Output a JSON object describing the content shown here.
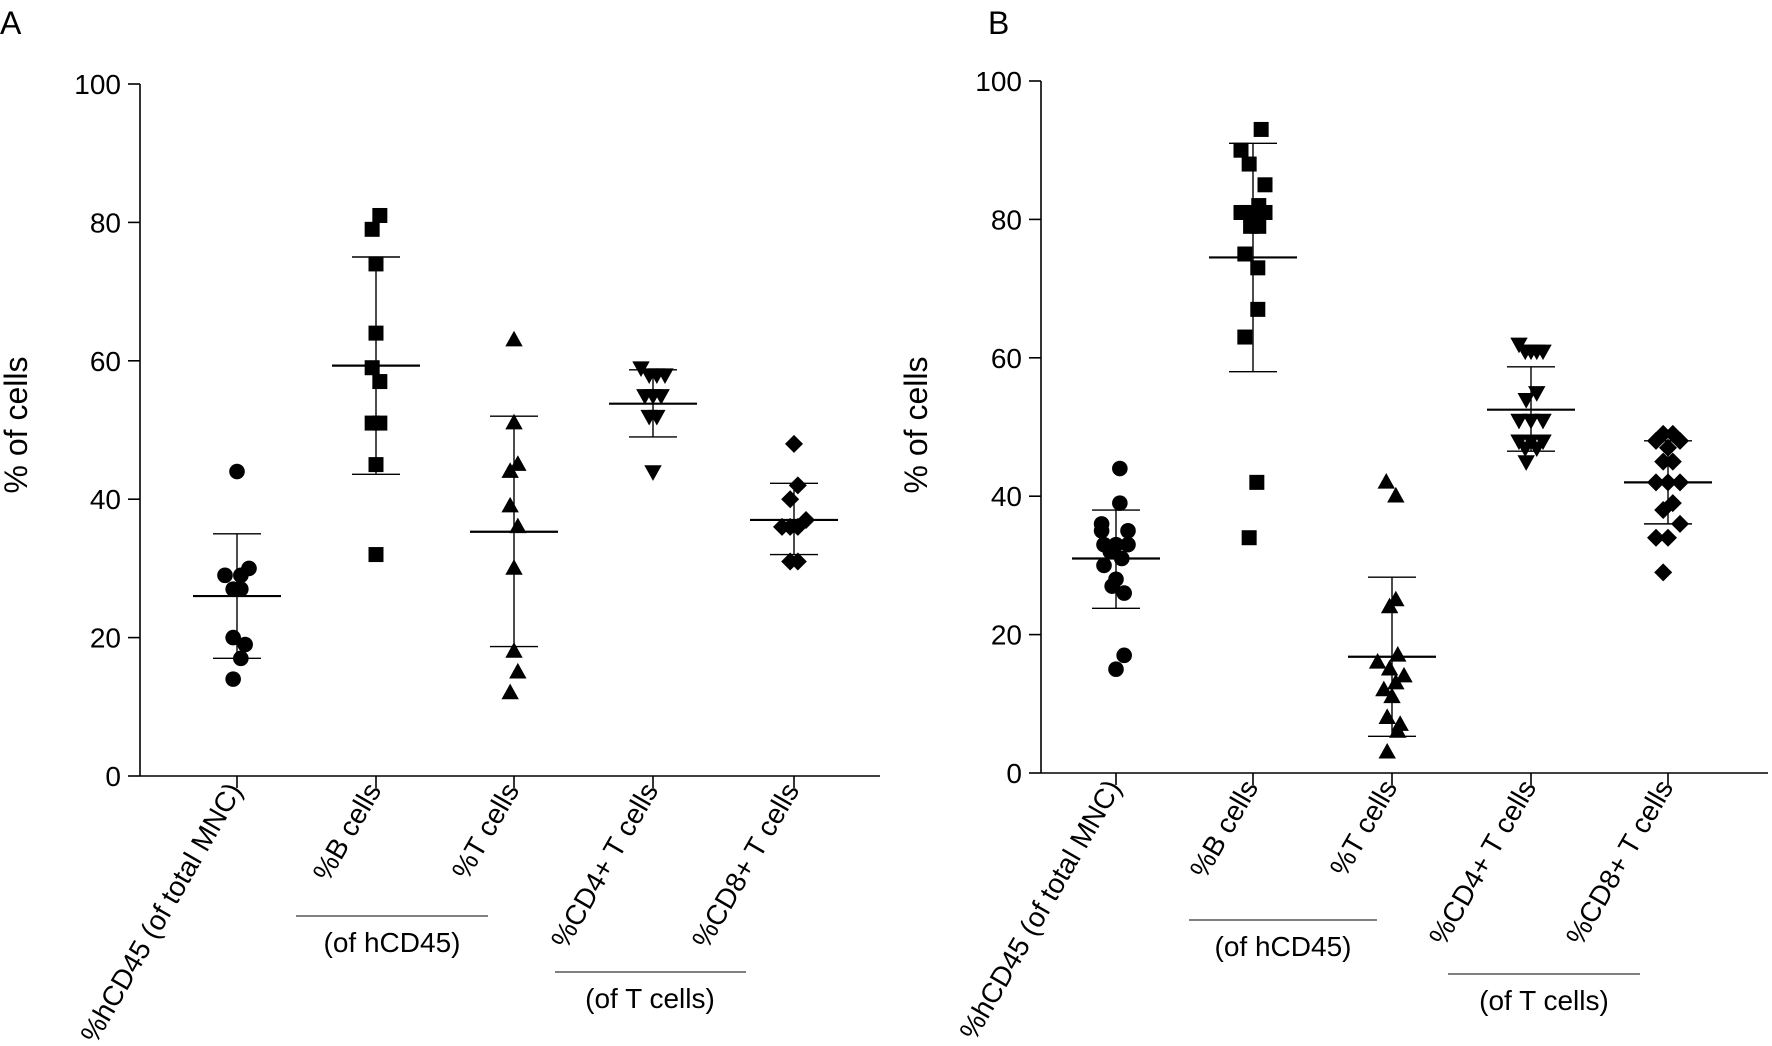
{
  "chart_data": [
    {
      "panel_label": "A",
      "type": "scatter",
      "ylabel": "% of cells",
      "ylim": [
        0,
        100
      ],
      "yticks": [
        0,
        20,
        40,
        60,
        80,
        100
      ],
      "categories": [
        "%hCD45 (of total MNC)",
        "%B cells",
        "%T cells",
        "%CD4+ T cells",
        "%CD8+ T cells"
      ],
      "group_labels": [
        {
          "text": "(of hCD45)",
          "spans": [
            1,
            2
          ]
        },
        {
          "text": "(of  T cells)",
          "spans": [
            3,
            4
          ]
        }
      ],
      "series": [
        {
          "name": "%hCD45 (of total MNC)",
          "marker": "circle",
          "mean": 26,
          "sd_low": 17,
          "sd_high": 35,
          "points": [
            [
              0,
              44
            ],
            [
              -0.25,
              29
            ],
            [
              0.08,
              29
            ],
            [
              0.25,
              30
            ],
            [
              -0.08,
              27
            ],
            [
              0.08,
              27
            ],
            [
              -0.08,
              20
            ],
            [
              0.17,
              19
            ],
            [
              0.08,
              17
            ],
            [
              -0.08,
              14
            ]
          ]
        },
        {
          "name": "%B cells",
          "marker": "square",
          "mean": 59.3,
          "sd_low": 43.6,
          "sd_high": 75,
          "points": [
            [
              0.08,
              81
            ],
            [
              -0.08,
              79
            ],
            [
              0,
              74
            ],
            [
              0,
              64
            ],
            [
              -0.08,
              59
            ],
            [
              0.08,
              57
            ],
            [
              -0.08,
              51
            ],
            [
              0.08,
              51
            ],
            [
              0,
              45
            ],
            [
              0,
              32
            ]
          ]
        },
        {
          "name": "%T cells",
          "marker": "triangle",
          "mean": 35.3,
          "sd_low": 18.7,
          "sd_high": 52,
          "points": [
            [
              0,
              63
            ],
            [
              0,
              51
            ],
            [
              -0.08,
              44
            ],
            [
              0.08,
              45
            ],
            [
              -0.08,
              39
            ],
            [
              0.08,
              36
            ],
            [
              0,
              30
            ],
            [
              0,
              18
            ],
            [
              0.08,
              15
            ],
            [
              -0.08,
              12
            ]
          ]
        },
        {
          "name": "%CD4+ T cells",
          "marker": "triangle-down",
          "mean": 53.8,
          "sd_low": 49,
          "sd_high": 58.7,
          "points": [
            [
              -0.25,
              59
            ],
            [
              -0.08,
              58
            ],
            [
              0.08,
              58
            ],
            [
              0.25,
              58
            ],
            [
              -0.17,
              55
            ],
            [
              0,
              55
            ],
            [
              0.17,
              55
            ],
            [
              -0.08,
              52
            ],
            [
              0.08,
              52
            ],
            [
              0,
              44
            ]
          ]
        },
        {
          "name": "%CD8+ T cells",
          "marker": "diamond",
          "mean": 37,
          "sd_low": 32,
          "sd_high": 42.3,
          "points": [
            [
              0,
              48
            ],
            [
              0.08,
              42
            ],
            [
              -0.08,
              40
            ],
            [
              0.25,
              37
            ],
            [
              -0.25,
              36
            ],
            [
              -0.08,
              36
            ],
            [
              0.08,
              36
            ],
            [
              -0.08,
              31
            ],
            [
              0.08,
              31
            ]
          ]
        }
      ]
    },
    {
      "panel_label": "B",
      "type": "scatter",
      "ylabel": "% of cells",
      "ylim": [
        0,
        100
      ],
      "yticks": [
        0,
        20,
        40,
        60,
        80,
        100
      ],
      "categories": [
        "%hCD45 (of total MNC)",
        "%B cells",
        "%T cells",
        "%CD4+ T cells",
        "%CD8+ T cells"
      ],
      "group_labels": [
        {
          "text": "(of hCD45)",
          "spans": [
            1,
            2
          ]
        },
        {
          "text": "(of  T cells)",
          "spans": [
            3,
            4
          ]
        }
      ],
      "series": [
        {
          "name": "%hCD45 (of total MNC)",
          "marker": "circle",
          "mean": 31,
          "sd_low": 23.8,
          "sd_high": 38,
          "points": [
            [
              0.08,
              44
            ],
            [
              0.08,
              39
            ],
            [
              -0.3,
              36
            ],
            [
              -0.3,
              35
            ],
            [
              0.25,
              35
            ],
            [
              -0.25,
              33
            ],
            [
              0.25,
              33
            ],
            [
              0,
              33
            ],
            [
              -0.12,
              32
            ],
            [
              0.12,
              31
            ],
            [
              -0.25,
              30
            ],
            [
              0,
              28
            ],
            [
              -0.08,
              27
            ],
            [
              0.17,
              26
            ],
            [
              0.17,
              17
            ],
            [
              0,
              15
            ]
          ]
        },
        {
          "name": "%B cells",
          "marker": "square",
          "mean": 74.5,
          "sd_low": 58,
          "sd_high": 91,
          "points": [
            [
              0.17,
              93
            ],
            [
              -0.25,
              90
            ],
            [
              -0.08,
              88
            ],
            [
              0.25,
              85
            ],
            [
              0.12,
              82
            ],
            [
              -0.25,
              81
            ],
            [
              -0.12,
              81
            ],
            [
              0,
              81
            ],
            [
              0.25,
              81
            ],
            [
              -0.05,
              79
            ],
            [
              0.12,
              79
            ],
            [
              -0.17,
              75
            ],
            [
              0.1,
              73
            ],
            [
              0.1,
              67
            ],
            [
              -0.17,
              63
            ],
            [
              0.08,
              42
            ],
            [
              -0.08,
              34
            ]
          ]
        },
        {
          "name": "%T cells",
          "marker": "triangle",
          "mean": 16.8,
          "sd_low": 5.3,
          "sd_high": 28.3,
          "points": [
            [
              -0.12,
              42
            ],
            [
              0.08,
              40
            ],
            [
              0.08,
              25
            ],
            [
              -0.05,
              24
            ],
            [
              0.12,
              17
            ],
            [
              -0.3,
              16
            ],
            [
              -0.05,
              15
            ],
            [
              0.25,
              14
            ],
            [
              0.08,
              13
            ],
            [
              -0.17,
              12
            ],
            [
              0,
              11
            ],
            [
              -0.1,
              8
            ],
            [
              0.12,
              6
            ],
            [
              0.17,
              7
            ],
            [
              -0.1,
              3
            ]
          ]
        },
        {
          "name": "%CD4+ T cells",
          "marker": "triangle-down",
          "mean": 52.5,
          "sd_low": 46.5,
          "sd_high": 58.7,
          "points": [
            [
              -0.25,
              62
            ],
            [
              -0.12,
              61
            ],
            [
              0,
              61
            ],
            [
              0.12,
              61
            ],
            [
              0.25,
              61
            ],
            [
              0.12,
              55
            ],
            [
              -0.1,
              54
            ],
            [
              -0.25,
              51
            ],
            [
              0,
              51
            ],
            [
              0.25,
              51
            ],
            [
              -0.25,
              48
            ],
            [
              0,
              48
            ],
            [
              -0.12,
              47
            ],
            [
              0.12,
              47
            ],
            [
              0.25,
              48
            ],
            [
              -0.1,
              45
            ]
          ]
        },
        {
          "name": "%CD8+ T cells",
          "marker": "diamond",
          "mean": 42,
          "sd_low": 36,
          "sd_high": 48,
          "points": [
            [
              -0.1,
              49
            ],
            [
              0.1,
              49
            ],
            [
              0.25,
              48
            ],
            [
              -0.25,
              48
            ],
            [
              0,
              47
            ],
            [
              -0.1,
              45
            ],
            [
              0.1,
              45
            ],
            [
              0.25,
              42
            ],
            [
              -0.25,
              42
            ],
            [
              0,
              42
            ],
            [
              -0.1,
              38
            ],
            [
              0.1,
              39
            ],
            [
              -0.25,
              34
            ],
            [
              0,
              34
            ],
            [
              0.25,
              36
            ],
            [
              -0.1,
              29
            ]
          ]
        }
      ]
    }
  ]
}
